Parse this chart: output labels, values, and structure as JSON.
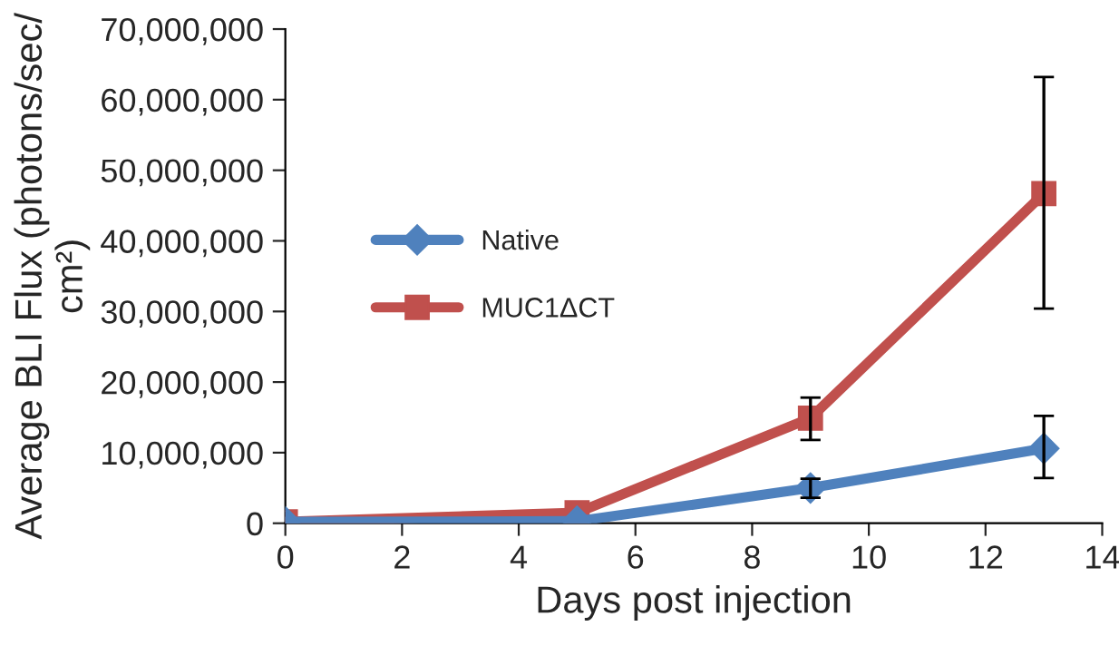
{
  "chart_data": {
    "type": "line",
    "xlabel": "Days post injection",
    "ylabel": "Average BLI Flux (photons/sec/\ncm²)",
    "x": [
      0,
      5,
      9,
      13
    ],
    "series": [
      {
        "name": "Native",
        "color": "#4f81bd",
        "marker": "diamond",
        "values": [
          200000,
          300000,
          5000000,
          10600000
        ],
        "errors": [
          null,
          null,
          [
            3600000,
            6300000
          ],
          [
            6400000,
            15200000
          ]
        ]
      },
      {
        "name": "MUC1ΔCT",
        "color": "#c0504d",
        "marker": "square",
        "values": [
          200000,
          1500000,
          14900000,
          46700000
        ],
        "errors": [
          null,
          null,
          [
            11800000,
            17800000
          ],
          [
            30400000,
            63200000
          ]
        ]
      }
    ],
    "xlim": [
      0,
      14
    ],
    "xticks": [
      0,
      2,
      4,
      6,
      8,
      10,
      12,
      14
    ],
    "ylim": [
      0,
      70000000
    ],
    "yticks": [
      {
        "value": 0,
        "label": "0"
      },
      {
        "value": 10000000,
        "label": "10,000,000"
      },
      {
        "value": 20000000,
        "label": "20,000,000"
      },
      {
        "value": 30000000,
        "label": "30,000,000"
      },
      {
        "value": 40000000,
        "label": "40,000,000"
      },
      {
        "value": 50000000,
        "label": "50,000,000"
      },
      {
        "value": 60000000,
        "label": "60,000,000"
      },
      {
        "value": 70000000,
        "label": "70,000,000"
      }
    ],
    "grid": false,
    "legend": "center left",
    "line_style": "solid"
  }
}
